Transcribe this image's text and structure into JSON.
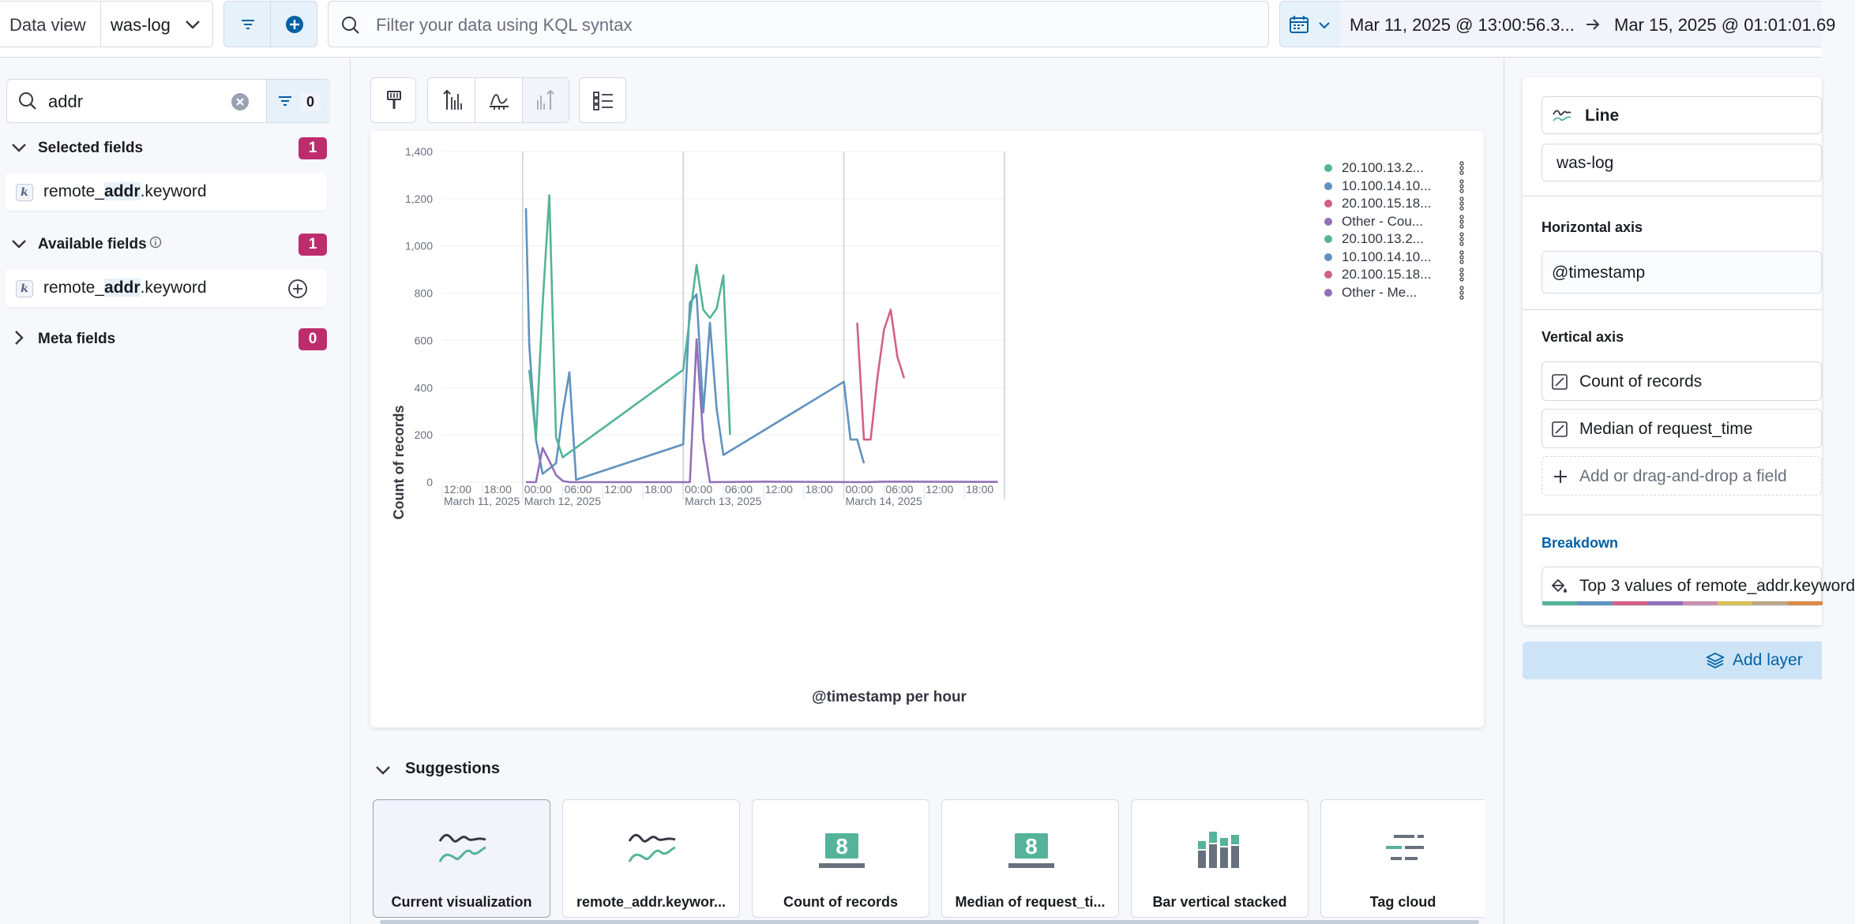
{
  "topbar": {
    "data_view_label": "Data view",
    "data_view_value": "was-log",
    "query_placeholder": "Filter your data using KQL syntax",
    "date_start": "Mar 11, 2025 @ 13:00:56.3...",
    "date_end": "Mar 15, 2025 @ 01:01:01.69"
  },
  "sidebar": {
    "search_value": "addr",
    "filter_count": "0",
    "selected_fields": {
      "title": "Selected fields",
      "count": "1",
      "field_pre": "remote_",
      "field_match": "addr",
      "field_post": ".keyword",
      "type": "k"
    },
    "available_fields": {
      "title": "Available fields",
      "count": "1",
      "field_pre": "remote_",
      "field_match": "addr",
      "field_post": ".keyword",
      "type": "k"
    },
    "meta_fields": {
      "title": "Meta fields",
      "count": "0"
    }
  },
  "chart_data": {
    "type": "line",
    "title": "",
    "xlabel": "@timestamp per hour",
    "ylabel": "Count of records",
    "ylim": [
      0,
      1400
    ],
    "y_ticks": [
      "0",
      "200",
      "400",
      "600",
      "800",
      "1,000",
      "1,200",
      "1,400"
    ],
    "x_ticks": [
      {
        "t": "2025-03-11T12:00",
        "label": "12:00",
        "sub": "March 11, 2025"
      },
      {
        "t": "2025-03-11T18:00",
        "label": "18:00",
        "sub": ""
      },
      {
        "t": "2025-03-12T00:00",
        "label": "00:00",
        "sub": "March 12, 2025"
      },
      {
        "t": "2025-03-12T06:00",
        "label": "06:00",
        "sub": ""
      },
      {
        "t": "2025-03-12T12:00",
        "label": "12:00",
        "sub": ""
      },
      {
        "t": "2025-03-12T18:00",
        "label": "18:00",
        "sub": ""
      },
      {
        "t": "2025-03-13T00:00",
        "label": "00:00",
        "sub": "March 13, 2025"
      },
      {
        "t": "2025-03-13T06:00",
        "label": "06:00",
        "sub": ""
      },
      {
        "t": "2025-03-13T12:00",
        "label": "12:00",
        "sub": ""
      },
      {
        "t": "2025-03-13T18:00",
        "label": "18:00",
        "sub": ""
      },
      {
        "t": "2025-03-14T00:00",
        "label": "00:00",
        "sub": "March 14, 2025"
      },
      {
        "t": "2025-03-14T06:00",
        "label": "06:00",
        "sub": ""
      },
      {
        "t": "2025-03-14T12:00",
        "label": "12:00",
        "sub": ""
      },
      {
        "t": "2025-03-14T18:00",
        "label": "18:00",
        "sub": ""
      }
    ],
    "day_lines": [
      "2025-03-12T00:00",
      "2025-03-13T00:00",
      "2025-03-14T00:00",
      "2025-03-15T00:00"
    ],
    "xlim": [
      "2025-03-11T12:00",
      "2025-03-15T00:00"
    ],
    "legend": [
      {
        "label": "20.100.13.2...",
        "color": "#54b399"
      },
      {
        "label": "10.100.14.10...",
        "color": "#6092c0"
      },
      {
        "label": "20.100.15.18...",
        "color": "#d36086"
      },
      {
        "label": "Other - Cou...",
        "color": "#9170b8"
      },
      {
        "label": "20.100.13.2...",
        "color": "#54b399"
      },
      {
        "label": "10.100.14.10...",
        "color": "#6092c0"
      },
      {
        "label": "20.100.15.18...",
        "color": "#d36086"
      },
      {
        "label": "Other - Me...",
        "color": "#9170b8"
      }
    ],
    "series": [
      {
        "color": "#6092c0",
        "points": [
          [
            "2025-03-12T00:30",
            1160
          ],
          [
            "2025-03-12T01:00",
            580
          ],
          [
            "2025-03-12T02:00",
            180
          ],
          [
            "2025-03-12T03:00",
            35
          ],
          [
            "2025-03-12T05:00",
            80
          ],
          [
            "2025-03-12T06:00",
            295
          ],
          [
            "2025-03-12T07:00",
            465
          ],
          [
            "2025-03-12T08:00",
            10
          ],
          [
            "2025-03-13T00:00",
            160
          ],
          [
            "2025-03-13T01:00",
            760
          ],
          [
            "2025-03-13T02:00",
            795
          ],
          [
            "2025-03-13T03:00",
            295
          ],
          [
            "2025-03-13T04:00",
            675
          ],
          [
            "2025-03-13T05:00",
            310
          ],
          [
            "2025-03-13T06:00",
            115
          ],
          [
            "2025-03-14T00:00",
            425
          ],
          [
            "2025-03-14T01:00",
            180
          ],
          [
            "2025-03-14T02:00",
            180
          ],
          [
            "2025-03-14T03:00",
            80
          ]
        ]
      },
      {
        "color": "#54b399",
        "points": [
          [
            "2025-03-12T01:00",
            475
          ],
          [
            "2025-03-12T02:00",
            185
          ],
          [
            "2025-03-12T03:00",
            750
          ],
          [
            "2025-03-12T04:00",
            1215
          ],
          [
            "2025-03-12T05:00",
            190
          ],
          [
            "2025-03-12T06:00",
            105
          ],
          [
            "2025-03-13T00:00",
            475
          ],
          [
            "2025-03-13T02:00",
            920
          ],
          [
            "2025-03-13T03:00",
            730
          ],
          [
            "2025-03-13T04:00",
            695
          ],
          [
            "2025-03-13T05:00",
            735
          ],
          [
            "2025-03-13T06:00",
            875
          ],
          [
            "2025-03-13T07:00",
            200
          ]
        ]
      },
      {
        "color": "#d36086",
        "points": [
          [
            "2025-03-14T02:00",
            675
          ],
          [
            "2025-03-14T03:00",
            180
          ],
          [
            "2025-03-14T04:00",
            180
          ],
          [
            "2025-03-14T05:00",
            440
          ],
          [
            "2025-03-14T06:00",
            645
          ],
          [
            "2025-03-14T07:00",
            730
          ],
          [
            "2025-03-14T08:00",
            530
          ],
          [
            "2025-03-14T09:00",
            440
          ]
        ]
      },
      {
        "color": "#9170b8",
        "points": [
          [
            "2025-03-12T00:30",
            0
          ],
          [
            "2025-03-12T02:00",
            0
          ],
          [
            "2025-03-12T03:00",
            145
          ],
          [
            "2025-03-12T04:00",
            90
          ],
          [
            "2025-03-12T05:00",
            30
          ],
          [
            "2025-03-12T06:00",
            5
          ],
          [
            "2025-03-12T07:00",
            0
          ],
          [
            "2025-03-13T00:30",
            0
          ],
          [
            "2025-03-13T01:00",
            0
          ],
          [
            "2025-03-13T02:00",
            605
          ],
          [
            "2025-03-13T03:00",
            180
          ],
          [
            "2025-03-13T04:00",
            0
          ],
          [
            "2025-03-13T12:00",
            2
          ],
          [
            "2025-03-14T03:00",
            0
          ],
          [
            "2025-03-14T06:00",
            2
          ],
          [
            "2025-03-14T23:00",
            1
          ]
        ]
      }
    ]
  },
  "toolbar_icons": [
    "paint-brush-icon",
    "left-axis-icon",
    "bottom-axis-icon",
    "right-axis-icon",
    "legend-icon"
  ],
  "suggestions": {
    "title": "Suggestions",
    "cards": [
      {
        "label": "Current visualization",
        "icon": "line",
        "selected": true
      },
      {
        "label": "remote_addr.keywor...",
        "icon": "line",
        "selected": false
      },
      {
        "label": "Count of records",
        "icon": "metric",
        "value": "8",
        "selected": false
      },
      {
        "label": "Median of request_ti...",
        "icon": "metric",
        "value": "8",
        "selected": false
      },
      {
        "label": "Bar vertical stacked",
        "icon": "bar",
        "selected": false
      },
      {
        "label": "Tag cloud",
        "icon": "tagcloud",
        "selected": false
      }
    ]
  },
  "config": {
    "chart_type": "Line",
    "layer_dataview": "was-log",
    "horizontal_axis_label": "Horizontal axis",
    "horizontal_axis_value": "@timestamp",
    "vertical_axis_label": "Vertical axis",
    "vertical_axis_items": [
      "Count of records",
      "Median of request_time"
    ],
    "add_field": "Add or drag-and-drop a field",
    "breakdown_label": "Breakdown",
    "breakdown_value": "Top 3 values of remote_addr.keyword",
    "add_layer": "Add layer",
    "palette": [
      "#54b399",
      "#6092c0",
      "#d36086",
      "#9170b8",
      "#ca8eae",
      "#d6bf57",
      "#b9a888",
      "#da8b45"
    ]
  }
}
